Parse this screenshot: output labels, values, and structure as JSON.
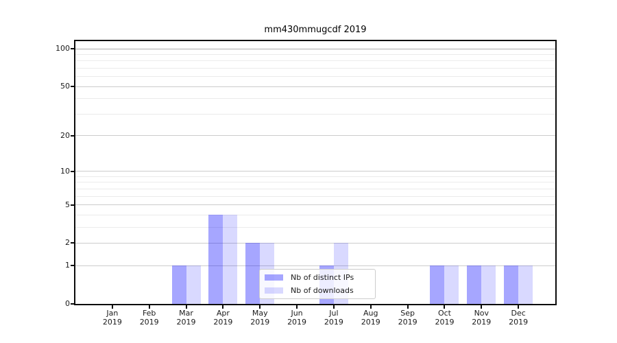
{
  "chart_data": {
    "type": "bar",
    "title": "mm430mmugcdf 2019",
    "months": [
      "Jan",
      "Feb",
      "Mar",
      "Apr",
      "May",
      "Jun",
      "Jul",
      "Aug",
      "Sep",
      "Oct",
      "Nov",
      "Dec"
    ],
    "year_label": "2019",
    "series": [
      {
        "name": "Nb of distinct IPs",
        "color": "rgba(0,0,255,0.35)",
        "values": [
          0,
          0,
          1,
          4,
          2,
          0,
          1,
          0,
          0,
          1,
          1,
          1
        ]
      },
      {
        "name": "Nb of downloads",
        "color": "rgba(0,0,255,0.15)",
        "values": [
          0,
          0,
          1,
          4,
          2,
          0,
          2,
          0,
          0,
          1,
          1,
          1
        ]
      }
    ],
    "yscale": "log1p",
    "ylim": [
      0,
      115
    ],
    "yticks": [
      0,
      1,
      2,
      5,
      10,
      20,
      50,
      100
    ],
    "minor_yticks": [
      3,
      4,
      6,
      7,
      8,
      9,
      30,
      40,
      60,
      70,
      80,
      90
    ],
    "grid": true,
    "legend_position": "lower center",
    "colors": {
      "grid_major": "#cccccc",
      "grid_minor": "#ebebeb",
      "grid_top": "#ababab",
      "spine": "#0a0a0a",
      "legend_border": "#cccccc",
      "legend_bg": "rgba(255,255,255,0.8)"
    }
  }
}
